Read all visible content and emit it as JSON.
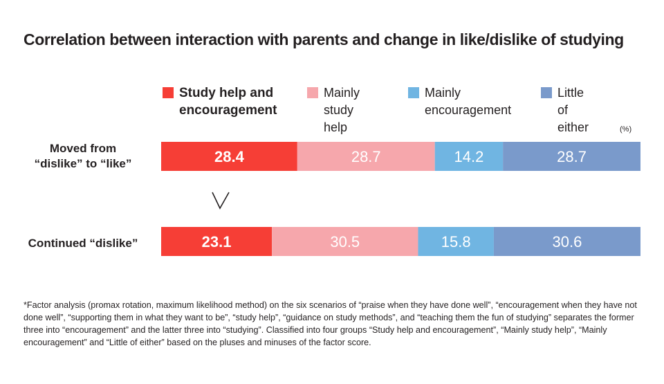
{
  "chart_data": {
    "type": "stacked-bar-horizontal",
    "title": "Correlation between interaction with parents and change in like/dislike of studying",
    "unit": "(%)",
    "series": [
      {
        "name": "Study help and\nencouragement",
        "color": "#f63e36"
      },
      {
        "name": "Mainly\nstudy help",
        "color": "#f6a7ac"
      },
      {
        "name": "Mainly\nencouragement",
        "color": "#70b5e2"
      },
      {
        "name": "Little of either",
        "color": "#7a9acb"
      }
    ],
    "rows": [
      {
        "label": "Moved from\n“dislike” to “like”",
        "values": [
          28.4,
          28.7,
          14.2,
          28.7
        ],
        "labels": [
          "28.4",
          "28.7",
          "14.2",
          "28.7"
        ]
      },
      {
        "label": "Continued “dislike”",
        "values": [
          23.1,
          30.5,
          15.8,
          30.6
        ],
        "labels": [
          "23.1",
          "30.5",
          "15.8",
          "30.6"
        ]
      }
    ],
    "comparison_symbol": "∨",
    "xlim": [
      0,
      100
    ]
  },
  "note": "*Factor analysis (promax rotation, maximum likelihood method) on the six scenarios of “praise when they have done well”, “encouragement when they have not done well”, “supporting them in what they want to be”, “study help”, “guidance on study methods”, and “teaching them the fun of studying” separates the former three into “encouragement” and the latter three into “studying”. Classified into four groups “Study help and encouragement”, “Mainly study help”, “Mainly encouragement” and “Little of either” based on the pluses and minuses of the factor score."
}
